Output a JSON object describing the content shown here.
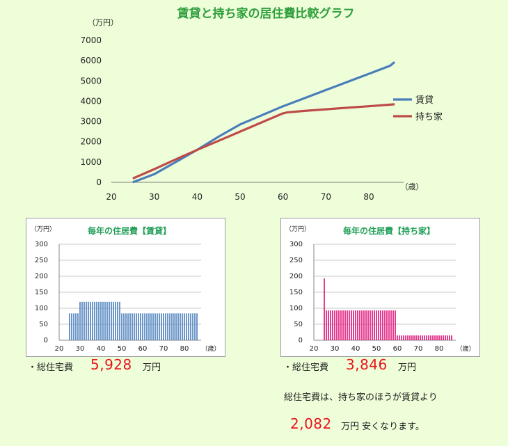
{
  "chart_data": [
    {
      "type": "line",
      "title": "賃貸と持ち家の居住費比較グラフ",
      "y_unit": "（万円）",
      "x_unit": "（歳）",
      "xlim": [
        20,
        90
      ],
      "ylim": [
        0,
        7000
      ],
      "x_ticks": [
        20,
        30,
        40,
        50,
        60,
        70,
        80
      ],
      "y_ticks": [
        0,
        1000,
        2000,
        3000,
        4000,
        5000,
        6000,
        7000
      ],
      "grid": false,
      "legend_position": "right",
      "series": [
        {
          "name": "賃貸",
          "color": "#4a7ebb",
          "x": [
            25,
            30,
            35,
            40,
            45,
            50,
            55,
            60,
            65,
            70,
            75,
            80,
            85,
            86
          ],
          "y": [
            0,
            400,
            1000,
            1600,
            2250,
            2850,
            3300,
            3750,
            4150,
            4550,
            4950,
            5350,
            5750,
            5928
          ]
        },
        {
          "name": "持ち家",
          "color": "#be4b48",
          "x": [
            25,
            30,
            35,
            40,
            45,
            50,
            55,
            60,
            61,
            65,
            70,
            75,
            80,
            85,
            86
          ],
          "y": [
            190,
            650,
            1130,
            1600,
            2050,
            2500,
            2950,
            3400,
            3450,
            3520,
            3600,
            3680,
            3750,
            3830,
            3846
          ]
        }
      ]
    },
    {
      "type": "bar",
      "title": "毎年の住居費【賃貸】",
      "y_unit": "（万円）",
      "x_unit": "（歳）",
      "color": "#4f81bd",
      "xlim": [
        20,
        88
      ],
      "ylim": [
        0,
        300
      ],
      "x_ticks": [
        20,
        30,
        40,
        50,
        60,
        70,
        80
      ],
      "y_ticks": [
        0,
        50,
        100,
        150,
        200,
        250,
        300
      ],
      "grid": true,
      "ages": [
        25,
        26,
        27,
        28,
        29,
        30,
        31,
        32,
        33,
        34,
        35,
        36,
        37,
        38,
        39,
        40,
        41,
        42,
        43,
        44,
        45,
        46,
        47,
        48,
        49,
        50,
        51,
        52,
        53,
        54,
        55,
        56,
        57,
        58,
        59,
        60,
        61,
        62,
        63,
        64,
        65,
        66,
        67,
        68,
        69,
        70,
        71,
        72,
        73,
        74,
        75,
        76,
        77,
        78,
        79,
        80,
        81,
        82,
        83,
        84,
        85,
        86
      ],
      "values": [
        84,
        84,
        84,
        84,
        84,
        120,
        120,
        120,
        120,
        120,
        120,
        120,
        120,
        120,
        120,
        120,
        120,
        120,
        120,
        120,
        120,
        120,
        120,
        120,
        120,
        84,
        84,
        84,
        84,
        84,
        84,
        84,
        84,
        84,
        84,
        84,
        84,
        84,
        84,
        84,
        84,
        84,
        84,
        84,
        84,
        84,
        84,
        84,
        84,
        84,
        84,
        84,
        84,
        84,
        84,
        84,
        84,
        84,
        84,
        84,
        84,
        84
      ]
    },
    {
      "type": "bar",
      "title": "毎年の住居費【持ち家】",
      "y_unit": "（万円）",
      "x_unit": "（歳）",
      "color": "#e0147a",
      "xlim": [
        20,
        88
      ],
      "ylim": [
        0,
        300
      ],
      "x_ticks": [
        20,
        30,
        40,
        50,
        60,
        70,
        80
      ],
      "y_ticks": [
        0,
        50,
        100,
        150,
        200,
        250,
        300
      ],
      "grid": true,
      "ages": [
        25,
        26,
        27,
        28,
        29,
        30,
        31,
        32,
        33,
        34,
        35,
        36,
        37,
        38,
        39,
        40,
        41,
        42,
        43,
        44,
        45,
        46,
        47,
        48,
        49,
        50,
        51,
        52,
        53,
        54,
        55,
        56,
        57,
        58,
        59,
        60,
        61,
        62,
        63,
        64,
        65,
        66,
        67,
        68,
        69,
        70,
        71,
        72,
        73,
        74,
        75,
        76,
        77,
        78,
        79,
        80,
        81,
        82,
        83,
        84,
        85,
        86
      ],
      "values": [
        193,
        93,
        93,
        93,
        93,
        93,
        93,
        93,
        93,
        93,
        93,
        93,
        93,
        93,
        93,
        93,
        93,
        93,
        93,
        93,
        93,
        93,
        93,
        93,
        93,
        93,
        93,
        93,
        93,
        93,
        93,
        93,
        93,
        93,
        93,
        15,
        15,
        15,
        15,
        15,
        15,
        15,
        15,
        15,
        15,
        15,
        15,
        15,
        15,
        15,
        15,
        15,
        15,
        15,
        15,
        15,
        15,
        15,
        15,
        15,
        15,
        15
      ]
    }
  ],
  "summary": {
    "rent_label": "・総住宅費",
    "rent_total": "5,928",
    "own_label": "・総住宅費",
    "own_total": "3,846",
    "unit": "万円",
    "conclusion_line": "総住宅費は、持ち家のほうが賃貸より",
    "difference": "2,082",
    "difference_suffix": "万円  安くなります。"
  }
}
